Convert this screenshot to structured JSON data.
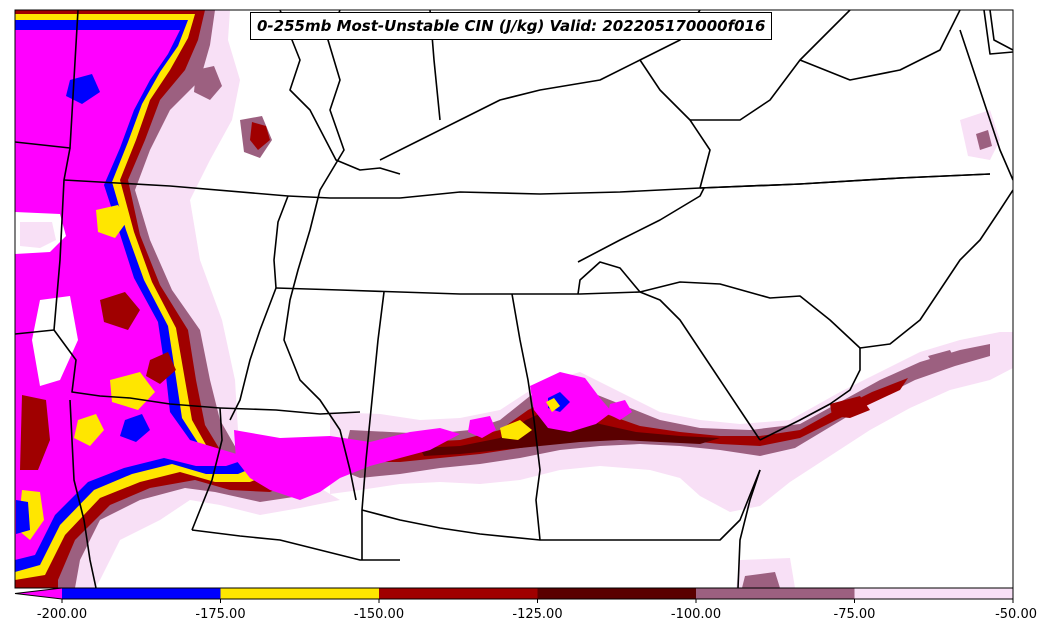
{
  "map": {
    "title": "0-255mb Most-Unstable CIN (J/kg) Valid: 202205170000f016",
    "units": "J/kg",
    "background": "#ffffff",
    "boundary_color": "#000000"
  },
  "colorbar": {
    "extend": "min",
    "bins": [
      {
        "from": -225,
        "to": -200,
        "color": "#ff00ff"
      },
      {
        "from": -200,
        "to": -175,
        "color": "#0000ff"
      },
      {
        "from": -175,
        "to": -150,
        "color": "#ffe600"
      },
      {
        "from": -150,
        "to": -125,
        "color": "#a00000"
      },
      {
        "from": -125,
        "to": -100,
        "color": "#5a0000"
      },
      {
        "from": -100,
        "to": -75,
        "color": "#9c6080"
      },
      {
        "from": -75,
        "to": -50,
        "color": "#f8e0f6"
      }
    ],
    "ticks": [
      {
        "value": -200,
        "label": "-200.00"
      },
      {
        "value": -175,
        "label": "-175.00"
      },
      {
        "value": -150,
        "label": "-150.00"
      },
      {
        "value": -125,
        "label": "-125.00"
      },
      {
        "value": -100,
        "label": "-100.00"
      },
      {
        "value": -75,
        "label": "-75.00"
      },
      {
        "value": -50,
        "label": "-50.00"
      }
    ]
  }
}
